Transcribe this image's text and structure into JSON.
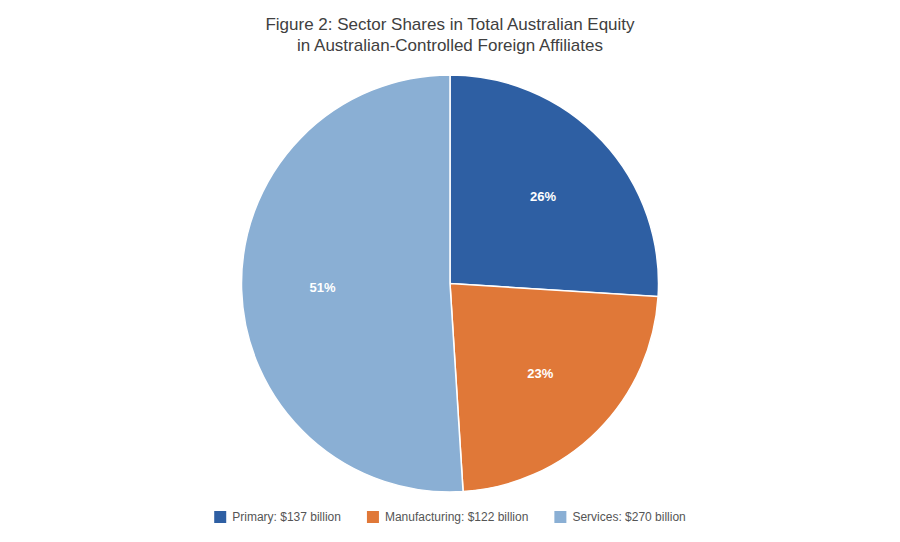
{
  "chart_data": {
    "type": "pie",
    "title": "Figure 2: Sector Shares in Total Australian Equity\nin Australian-Controlled Foreign Affiliates",
    "categories": [
      "Primary: $137 billion",
      "Manufacturing: $122 billion",
      "Services: $270 billion"
    ],
    "values": [
      26,
      23,
      51
    ],
    "value_labels": [
      "26%",
      "23%",
      "51%"
    ],
    "data_labels": true,
    "colors": [
      "#2E5FA3",
      "#E07838",
      "#8AAFD4"
    ],
    "legend": "bottom"
  }
}
